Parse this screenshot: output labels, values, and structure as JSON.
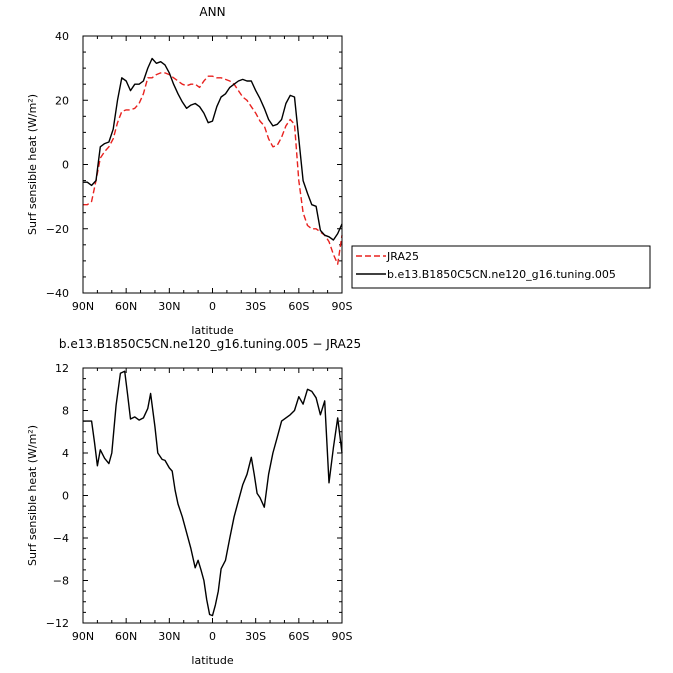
{
  "chart_data": [
    {
      "type": "line",
      "title": "ANN",
      "xlabel": "latitude",
      "ylabel": "Surf sensible heat (W/m²)",
      "xlim": [
        90,
        -90
      ],
      "ylim": [
        -40,
        40
      ],
      "xticks": [
        90,
        60,
        30,
        0,
        -30,
        -60,
        -90
      ],
      "xtick_labels": [
        "90N",
        "60N",
        "30N",
        "0",
        "30S",
        "60S",
        "90S"
      ],
      "yticks": [
        -40,
        -20,
        0,
        20,
        40
      ],
      "ytick_labels": [
        "−40",
        "−20",
        "0",
        "20",
        "40"
      ],
      "grid": false,
      "legend": "right",
      "series": [
        {
          "name": "JRA25",
          "color": "#e8221f",
          "dash": "dashed",
          "x": [
            90,
            87,
            84,
            81,
            78,
            75,
            72,
            69,
            66,
            63,
            60,
            57,
            54,
            51,
            48,
            45,
            42,
            39,
            36,
            33,
            30,
            27,
            24,
            21,
            18,
            15,
            12,
            9,
            6,
            3,
            0,
            -3,
            -6,
            -9,
            -12,
            -15,
            -18,
            -21,
            -24,
            -27,
            -30,
            -33,
            -36,
            -39,
            -42,
            -45,
            -48,
            -51,
            -54,
            -57,
            -60,
            -63,
            -66,
            -69,
            -72,
            -75,
            -78,
            -81,
            -84,
            -87,
            -90
          ],
          "y": [
            -12.5,
            -12.5,
            -11.5,
            -5,
            2,
            4,
            5.5,
            8,
            13,
            16.5,
            17,
            17,
            17.5,
            19,
            22,
            27,
            27,
            28,
            28.5,
            28.5,
            28,
            27,
            26,
            25,
            24.5,
            25,
            25,
            24,
            26,
            27.5,
            27.5,
            27,
            27,
            26.5,
            26,
            25,
            23,
            21,
            20,
            18,
            16,
            13.5,
            12,
            8,
            5.5,
            6,
            8.5,
            12,
            14,
            12.5,
            -5,
            -15,
            -19,
            -20,
            -20,
            -21,
            -22,
            -24,
            -28,
            -31,
            -22
          ]
        },
        {
          "name": "b.e13.B1850C5CN.ne120_g16.tuning.005",
          "color": "#000000",
          "dash": "solid",
          "x": [
            90,
            87,
            84,
            81,
            78,
            75,
            72,
            69,
            66,
            63,
            60,
            57,
            54,
            51,
            48,
            45,
            42,
            39,
            36,
            33,
            30,
            27,
            24,
            21,
            18,
            15,
            12,
            9,
            6,
            3,
            0,
            -3,
            -6,
            -9,
            -12,
            -15,
            -18,
            -21,
            -24,
            -27,
            -30,
            -33,
            -36,
            -39,
            -42,
            -45,
            -48,
            -51,
            -54,
            -57,
            -60,
            -63,
            -66,
            -69,
            -72,
            -75,
            -78,
            -81,
            -84,
            -87,
            -90
          ],
          "y": [
            -5.5,
            -5.5,
            -6.5,
            -5,
            5.5,
            6.5,
            7,
            11,
            20,
            27,
            26,
            23,
            25,
            25,
            26,
            30,
            33,
            31.5,
            32,
            31,
            28.5,
            25,
            22,
            19.5,
            17.5,
            18.5,
            19,
            18,
            16,
            13,
            13.5,
            18,
            21,
            22,
            24,
            25,
            26,
            26.5,
            26,
            26,
            23,
            20.5,
            17.5,
            14,
            12,
            12.5,
            14,
            19,
            21.5,
            21,
            8,
            -5,
            -9,
            -12.5,
            -13,
            -20.5,
            -22,
            -22.5,
            -23.5,
            -21.5,
            -18.5
          ]
        }
      ]
    },
    {
      "type": "line",
      "title": "b.e13.B1850C5CN.ne120_g16.tuning.005 − JRA25",
      "xlabel": "latitude",
      "ylabel": "Surf sensible heat (W/m²)",
      "xlim": [
        90,
        -90
      ],
      "ylim": [
        -12,
        12
      ],
      "xticks": [
        90,
        60,
        30,
        0,
        -30,
        -60,
        -90
      ],
      "xtick_labels": [
        "90N",
        "60N",
        "30N",
        "0",
        "30S",
        "60S",
        "90S"
      ],
      "yticks": [
        -12,
        -8,
        -4,
        0,
        4,
        8,
        12
      ],
      "ytick_labels": [
        "−12",
        "−8",
        "−4",
        "0",
        "4",
        "8",
        "12"
      ],
      "grid": false,
      "series": [
        {
          "color": "#000000",
          "dash": "solid",
          "x": [
            90,
            87,
            84,
            82,
            80,
            78,
            75,
            72,
            70,
            67,
            64,
            61,
            59,
            57,
            54,
            51,
            48,
            45,
            43,
            40,
            38,
            35,
            33,
            30,
            28,
            26,
            24,
            21,
            18,
            15,
            12,
            10,
            8,
            6,
            4,
            2,
            0,
            -2,
            -4,
            -6,
            -9,
            -12,
            -15,
            -18,
            -21,
            -24,
            -27,
            -29,
            -31,
            -33,
            -36,
            -39,
            -42,
            -45,
            -48,
            -51,
            -54,
            -57,
            -60,
            -63,
            -66,
            -69,
            -72,
            -75,
            -78,
            -81,
            -84,
            -87,
            -90
          ],
          "y": [
            7,
            7,
            7,
            5,
            2.8,
            4.3,
            3.5,
            3,
            4,
            8.5,
            11.5,
            11.7,
            9.5,
            7.2,
            7.4,
            7.1,
            7.3,
            8.2,
            9.6,
            6.5,
            4,
            3.4,
            3.3,
            2.6,
            2.3,
            0.5,
            -0.8,
            -2,
            -3.5,
            -5,
            -6.8,
            -6.1,
            -7,
            -8,
            -9.8,
            -11.2,
            -11.3,
            -10.3,
            -9,
            -6.9,
            -6.1,
            -4,
            -2,
            -0.5,
            1,
            2,
            3.6,
            2,
            0.2,
            -0.2,
            -1.1,
            2,
            4,
            5.5,
            7,
            7.3,
            7.6,
            8,
            9.3,
            8.6,
            10,
            9.8,
            9.2,
            7.6,
            8.9,
            1.2,
            4.5,
            7.3,
            4
          ]
        }
      ]
    }
  ]
}
